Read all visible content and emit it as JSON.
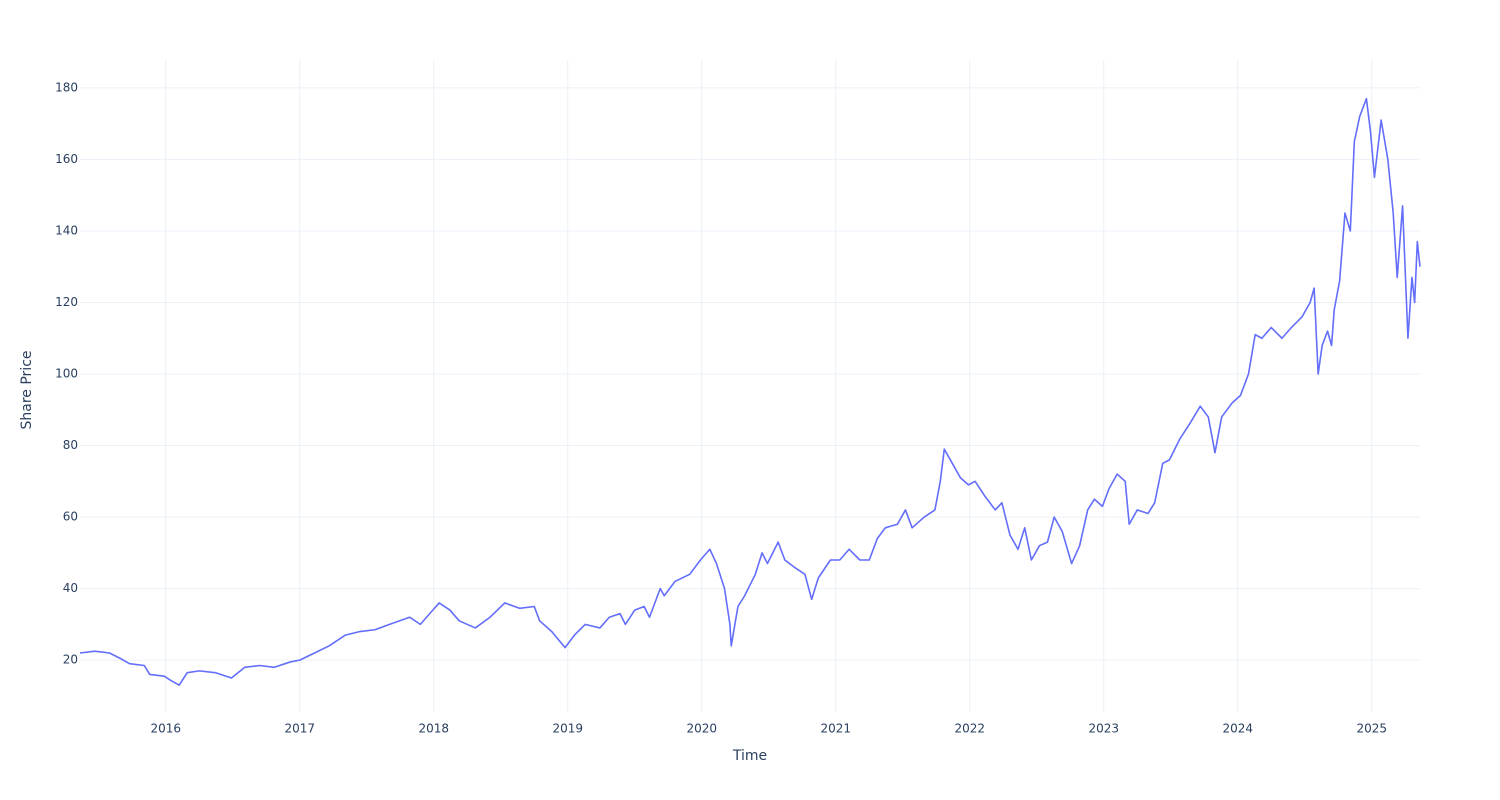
{
  "chart_data": {
    "type": "line",
    "x_label": "Time",
    "y_label": "Share Price",
    "color": "#636efa",
    "grid": true,
    "xlim": [
      2015.36,
      2025.36
    ],
    "ylim": [
      5.5,
      187.8
    ],
    "xticks": [
      2016,
      2017,
      2018,
      2019,
      2020,
      2021,
      2022,
      2023,
      2024,
      2025
    ],
    "yticks": [
      20,
      40,
      60,
      80,
      100,
      120,
      140,
      160,
      180
    ],
    "x": [
      2015.36,
      2015.47,
      2015.58,
      2015.66,
      2015.73,
      2015.84,
      2015.88,
      2015.99,
      2016.03,
      2016.1,
      2016.16,
      2016.25,
      2016.37,
      2016.49,
      2016.59,
      2016.7,
      2016.81,
      2016.93,
      2017.0,
      2017.11,
      2017.22,
      2017.34,
      2017.45,
      2017.56,
      2017.67,
      2017.82,
      2017.9,
      2017.97,
      2018.04,
      2018.12,
      2018.19,
      2018.31,
      2018.42,
      2018.53,
      2018.64,
      2018.75,
      2018.79,
      2018.88,
      2018.98,
      2019.05,
      2019.13,
      2019.24,
      2019.31,
      2019.39,
      2019.43,
      2019.5,
      2019.57,
      2019.61,
      2019.69,
      2019.72,
      2019.8,
      2019.91,
      2019.99,
      2020.06,
      2020.11,
      2020.17,
      2020.21,
      2020.22,
      2020.27,
      2020.32,
      2020.4,
      2020.45,
      2020.49,
      2020.57,
      2020.62,
      2020.69,
      2020.77,
      2020.82,
      2020.87,
      2020.96,
      2021.03,
      2021.1,
      2021.18,
      2021.25,
      2021.31,
      2021.37,
      2021.46,
      2021.52,
      2021.57,
      2021.66,
      2021.74,
      2021.78,
      2021.81,
      2021.87,
      2021.93,
      2021.99,
      2022.04,
      2022.11,
      2022.19,
      2022.24,
      2022.3,
      2022.36,
      2022.41,
      2022.46,
      2022.52,
      2022.58,
      2022.63,
      2022.69,
      2022.76,
      2022.82,
      2022.88,
      2022.93,
      2022.99,
      2023.04,
      2023.1,
      2023.16,
      2023.19,
      2023.25,
      2023.33,
      2023.38,
      2023.44,
      2023.49,
      2023.57,
      2023.64,
      2023.72,
      2023.78,
      2023.83,
      2023.88,
      2023.96,
      2024.02,
      2024.08,
      2024.13,
      2024.18,
      2024.25,
      2024.33,
      2024.4,
      2024.48,
      2024.54,
      2024.57,
      2024.6,
      2024.63,
      2024.67,
      2024.7,
      2024.72,
      2024.76,
      2024.8,
      2024.84,
      2024.87,
      2024.91,
      2024.96,
      2024.99,
      2025.02,
      2025.07,
      2025.12,
      2025.16,
      2025.19,
      2025.23,
      2025.27,
      2025.3,
      2025.32,
      2025.34,
      2025.36
    ],
    "values": [
      22,
      22.5,
      22,
      20.5,
      19,
      18.5,
      16,
      15.5,
      14.5,
      13,
      16.5,
      17,
      16.5,
      15,
      18,
      18.5,
      18,
      19.5,
      20,
      22,
      24,
      27,
      28,
      28.5,
      30,
      32,
      30,
      33,
      36,
      34,
      31,
      29,
      32,
      36,
      34.5,
      35,
      31,
      28,
      23.5,
      27,
      30,
      29,
      32,
      33,
      30,
      34,
      35,
      32,
      40,
      38,
      42,
      44,
      48,
      51,
      47,
      40,
      30,
      24,
      35,
      38,
      44,
      50,
      47,
      53,
      48,
      46,
      44,
      37,
      43,
      48,
      48,
      51,
      48,
      48,
      54,
      57,
      58,
      62,
      57,
      60,
      62,
      70,
      79,
      75,
      71,
      69,
      70,
      66,
      62,
      64,
      55,
      51,
      57,
      48,
      52,
      53,
      60,
      56,
      47,
      52,
      62,
      65,
      63,
      68,
      72,
      70,
      58,
      62,
      61,
      64,
      75,
      76,
      82,
      86,
      91,
      88,
      78,
      88,
      92,
      94,
      100,
      111,
      110,
      113,
      110,
      113,
      116,
      120,
      124,
      100,
      108,
      112,
      108,
      118,
      126,
      145,
      140,
      165,
      172,
      177,
      168,
      155,
      171,
      160,
      145,
      127,
      147,
      110,
      127,
      120,
      137,
      130
    ]
  }
}
